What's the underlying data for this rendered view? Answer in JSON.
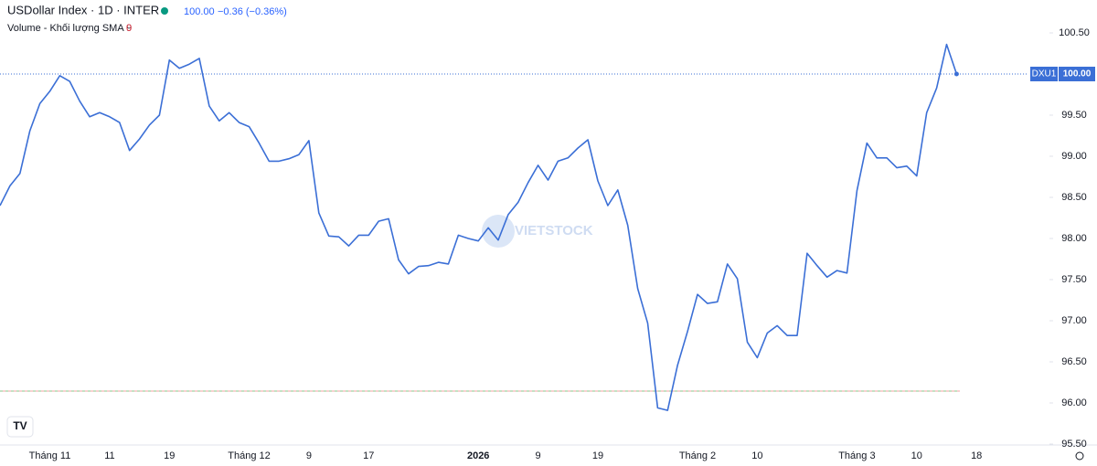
{
  "chart_data": {
    "type": "line",
    "title": "USDollar Index · 1D · INTER",
    "price": "100.00",
    "change": "−0.36 (−0.36%)",
    "volume_label": "Volume - Khối lượng SMA 9",
    "volume_value": "0",
    "watermark": "VIETSTOCK",
    "price_tag_name": "DXU1",
    "price_tag_value": "100.00",
    "categories": [
      null,
      null,
      null,
      null,
      null,
      "Tháng 11",
      null,
      null,
      null,
      null,
      null,
      "11",
      null,
      null,
      null,
      null,
      null,
      "19",
      null,
      null,
      null,
      null,
      null,
      null,
      null,
      "Tháng 12",
      null,
      null,
      null,
      null,
      null,
      "9",
      null,
      null,
      null,
      null,
      null,
      "17",
      null,
      null,
      null,
      null,
      null,
      null,
      null,
      null,
      null,
      null,
      "2026",
      null,
      null,
      null,
      null,
      null,
      "9",
      null,
      null,
      null,
      null,
      null,
      "19",
      null,
      null,
      null,
      null,
      null,
      null,
      null,
      null,
      null,
      "Tháng 2",
      null,
      null,
      null,
      null,
      null,
      "10",
      null,
      null,
      null,
      null,
      null,
      null,
      null,
      null,
      null,
      "Tháng 3",
      null,
      null,
      null,
      null,
      null,
      "10",
      null,
      null,
      null,
      null,
      null,
      "18",
      null,
      null
    ],
    "series": [
      {
        "name": "DXU1",
        "color": "#3b6fd6",
        "values": [
          98.4,
          98.64,
          98.79,
          99.31,
          99.64,
          99.79,
          99.98,
          99.91,
          99.67,
          99.48,
          99.53,
          99.48,
          99.41,
          99.07,
          99.21,
          99.38,
          99.5,
          100.17,
          100.07,
          100.12,
          100.19,
          99.61,
          99.43,
          99.53,
          99.41,
          99.36,
          99.16,
          98.94,
          98.94,
          98.97,
          99.02,
          99.19,
          98.31,
          98.03,
          98.02,
          97.91,
          98.04,
          98.04,
          98.21,
          98.24,
          97.74,
          97.57,
          97.66,
          97.67,
          97.71,
          97.69,
          98.04,
          98.0,
          97.97,
          98.13,
          97.98,
          98.29,
          98.44,
          98.68,
          98.89,
          98.71,
          98.94,
          98.98,
          99.1,
          99.2,
          98.7,
          98.4,
          98.59,
          98.16,
          97.39,
          96.97,
          95.94,
          95.91,
          96.46,
          96.87,
          97.32,
          97.21,
          97.23,
          97.69,
          97.51,
          96.74,
          96.55,
          96.85,
          96.94,
          96.82,
          96.82,
          97.82,
          97.67,
          97.53,
          97.61,
          97.58,
          98.58,
          99.16,
          98.98,
          98.98,
          98.86,
          98.88,
          98.76,
          99.53,
          99.83,
          100.36,
          100.0,
          null,
          null,
          null,
          null
        ]
      }
    ],
    "ylim": [
      95.4,
      100.7
    ],
    "yticks": [
      {
        "value": 95.5,
        "label": "95.50"
      },
      {
        "value": 96,
        "label": "96.00"
      },
      {
        "value": 96.5,
        "label": "96.50"
      },
      {
        "value": 97,
        "label": "97.00"
      },
      {
        "value": 97.5,
        "label": "97.50"
      },
      {
        "value": 98,
        "label": "98.00"
      },
      {
        "value": 98.5,
        "label": "98.50"
      },
      {
        "value": 99,
        "label": "99.00"
      },
      {
        "value": 99.5,
        "label": "99.50"
      },
      {
        "value": 100,
        "label": "100.00"
      },
      {
        "value": 100.5,
        "label": "100.50"
      }
    ],
    "grid": false
  }
}
